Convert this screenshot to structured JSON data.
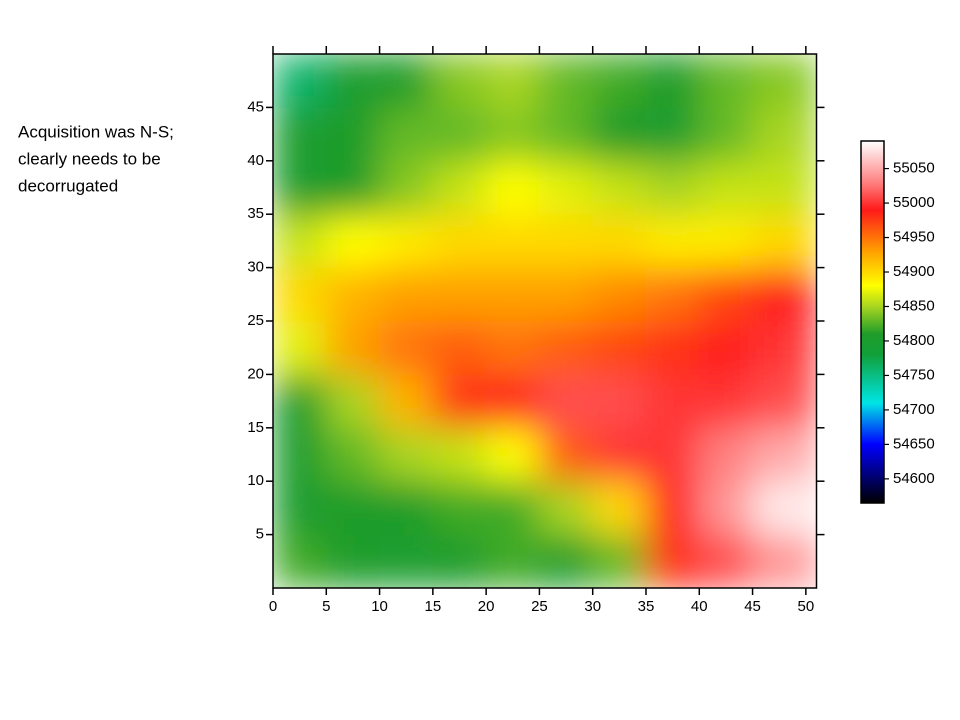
{
  "chart_data": {
    "type": "heatmap",
    "annotation_lines": [
      "Acquisition was N-S;",
      "clearly needs to be",
      "decorrugated"
    ],
    "x": [
      2.5,
      7.5,
      12.5,
      17.5,
      22.5,
      27.5,
      32.5,
      37.5,
      42.5,
      47.5
    ],
    "y": [
      2.5,
      7.5,
      12.5,
      17.5,
      22.5,
      27.5,
      32.5,
      37.5,
      42.5,
      47.5
    ],
    "z": [
      [
        54820,
        54810,
        54800,
        54810,
        54820,
        54800,
        54830,
        54980,
        55010,
        55040
      ],
      [
        54800,
        54810,
        54810,
        54820,
        54820,
        54850,
        54900,
        54990,
        55040,
        55080
      ],
      [
        54800,
        54830,
        54850,
        54860,
        54880,
        54960,
        55000,
        55000,
        55030,
        55050
      ],
      [
        54800,
        54850,
        54920,
        54980,
        54990,
        55010,
        55010,
        55000,
        55000,
        55010
      ],
      [
        54870,
        54930,
        54950,
        54960,
        54950,
        54960,
        54970,
        54980,
        54990,
        55000
      ],
      [
        54900,
        54920,
        54930,
        54930,
        54930,
        54930,
        54940,
        54950,
        54970,
        54990
      ],
      [
        54860,
        54880,
        54890,
        54900,
        54900,
        54900,
        54900,
        54890,
        54890,
        54900
      ],
      [
        54800,
        54810,
        54840,
        54860,
        54880,
        54870,
        54860,
        54850,
        54860,
        54860
      ],
      [
        54800,
        54810,
        54830,
        54830,
        54840,
        54830,
        54810,
        54800,
        54830,
        54850
      ],
      [
        54760,
        54800,
        54810,
        54840,
        54850,
        54830,
        54820,
        54810,
        54830,
        54840
      ]
    ],
    "xlim": [
      0,
      51
    ],
    "ylim": [
      0,
      50
    ],
    "xticks": [
      0,
      5,
      10,
      15,
      20,
      25,
      30,
      35,
      40,
      45,
      50
    ],
    "yticks": [
      5,
      10,
      15,
      20,
      25,
      30,
      35,
      40,
      45
    ],
    "colorscale": [
      [
        54565,
        "#000000"
      ],
      [
        54650,
        "#0000ff"
      ],
      [
        54710,
        "#00e5e5"
      ],
      [
        54780,
        "#11a03a"
      ],
      [
        54810,
        "#1f9c2a"
      ],
      [
        54850,
        "#a8d520"
      ],
      [
        54880,
        "#ffff00"
      ],
      [
        54930,
        "#ffa000"
      ],
      [
        54990,
        "#ff1a1a"
      ],
      [
        55030,
        "#ff8080"
      ],
      [
        55090,
        "#ffffff"
      ]
    ],
    "colorbar_lim": [
      54565,
      55090
    ],
    "colorbar_ticks": [
      54600,
      54650,
      54700,
      54750,
      54800,
      54850,
      54900,
      54950,
      55000,
      55050
    ]
  }
}
